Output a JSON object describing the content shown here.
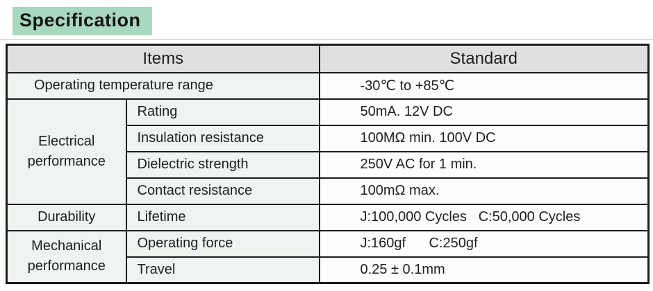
{
  "section": {
    "title": "Specification"
  },
  "table": {
    "header": {
      "items": "Items",
      "standard": "Standard"
    },
    "temp_row": {
      "item": "Operating temperature range",
      "standard": "-30℃ to +85℃"
    },
    "groups": [
      {
        "name": "Electrical performance",
        "rows": [
          {
            "item": "Rating",
            "standard": "50mA. 12V DC"
          },
          {
            "item": "Insulation resistance",
            "standard": "100MΩ min. 100V DC"
          },
          {
            "item": "Dielectric strength",
            "standard": "250V AC for 1 min."
          },
          {
            "item": "Contact resistance",
            "standard": "100mΩ max."
          }
        ]
      },
      {
        "name": "Durability",
        "rows": [
          {
            "item": "Lifetime",
            "standard": "J:100,000 Cycles   C:50,000 Cycles"
          }
        ]
      },
      {
        "name": "Mechanical performance",
        "rows": [
          {
            "item": "Operating force",
            "standard": "J:160gf      C:250gf"
          },
          {
            "item": "Travel",
            "standard": "0.25 ± 0.1mm"
          }
        ]
      }
    ]
  },
  "colors": {
    "title_background": "#a8d8be",
    "header_background": "#e0e0e0",
    "items_background": "#eef4ef",
    "standard_background": "#fdfdfd",
    "border": "#1c1c1c"
  }
}
